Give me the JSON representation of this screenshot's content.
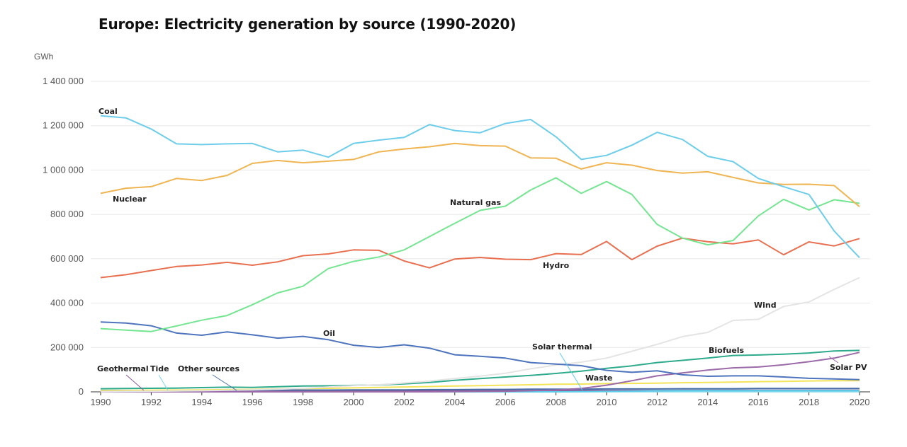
{
  "title": "Europe: Electricity generation by source (1990-2020)",
  "chart_data": {
    "type": "line",
    "title": "Europe: Electricity generation by source (1990-2020)",
    "unit": "GWh",
    "xlim": [
      1990,
      2020
    ],
    "ylim": [
      0,
      1400000
    ],
    "x_ticks": [
      1990,
      1992,
      1994,
      1996,
      1998,
      2000,
      2002,
      2004,
      2006,
      2008,
      2010,
      2012,
      2014,
      2016,
      2018,
      2020
    ],
    "y_ticks": [
      0,
      200000,
      400000,
      600000,
      800000,
      1000000,
      1200000,
      1400000
    ],
    "y_tick_labels": [
      "0",
      "200 000",
      "400 000",
      "600 000",
      "800 000",
      "1 000 000",
      "1 200 000",
      "1 400 000"
    ],
    "x": [
      1990,
      1991,
      1992,
      1993,
      1994,
      1995,
      1996,
      1997,
      1998,
      1999,
      2000,
      2001,
      2002,
      2003,
      2004,
      2005,
      2006,
      2007,
      2008,
      2009,
      2010,
      2011,
      2012,
      2013,
      2014,
      2015,
      2016,
      2017,
      2018,
      2019,
      2020
    ],
    "grid": "horizontal",
    "series": [
      {
        "name": "Coal",
        "color": "#6dcdea",
        "values": [
          1245000,
          1235000,
          1185000,
          1118000,
          1115000,
          1118000,
          1120000,
          1082000,
          1090000,
          1058000,
          1120000,
          1135000,
          1147000,
          1205000,
          1178000,
          1168000,
          1210000,
          1228000,
          1150000,
          1048000,
          1066000,
          1112000,
          1170000,
          1138000,
          1062000,
          1038000,
          962000,
          925000,
          890000,
          725000,
          605000
        ]
      },
      {
        "name": "Nuclear",
        "color": "#efb552",
        "values": [
          895000,
          918000,
          925000,
          962000,
          953000,
          976000,
          1030000,
          1043000,
          1033000,
          1040000,
          1048000,
          1082000,
          1095000,
          1105000,
          1120000,
          1110000,
          1108000,
          1055000,
          1053000,
          1005000,
          1033000,
          1022000,
          998000,
          986000,
          992000,
          967000,
          942000,
          935000,
          936000,
          930000,
          835000
        ]
      },
      {
        "name": "Natural gas",
        "color": "#74e591",
        "values": [
          285000,
          278000,
          272000,
          297000,
          323000,
          344000,
          393000,
          446000,
          476000,
          556000,
          588000,
          608000,
          640000,
          700000,
          760000,
          818000,
          837000,
          910000,
          965000,
          895000,
          948000,
          890000,
          755000,
          693000,
          663000,
          682000,
          793000,
          868000,
          820000,
          866000,
          850000
        ]
      },
      {
        "name": "Hydro",
        "color": "#e86f4f",
        "values": [
          515000,
          528000,
          547000,
          565000,
          572000,
          584000,
          571000,
          586000,
          614000,
          622000,
          640000,
          638000,
          590000,
          559000,
          599000,
          606000,
          598000,
          596000,
          623000,
          619000,
          678000,
          596000,
          657000,
          693000,
          677000,
          667000,
          685000,
          618000,
          676000,
          658000,
          691000
        ]
      },
      {
        "name": "Oil",
        "color": "#4e74bd",
        "values": [
          315000,
          310000,
          298000,
          265000,
          255000,
          270000,
          257000,
          242000,
          250000,
          235000,
          210000,
          200000,
          212000,
          197000,
          167000,
          160000,
          152000,
          132000,
          125000,
          118000,
          97000,
          88000,
          95000,
          77000,
          70000,
          72000,
          72000,
          67000,
          61000,
          58000,
          55000
        ]
      },
      {
        "name": "Wind",
        "color": "#e4e4e4",
        "values": [
          1000,
          2000,
          3000,
          4000,
          5000,
          7000,
          9000,
          12000,
          16000,
          22000,
          28000,
          32000,
          40000,
          48000,
          60000,
          71000,
          84000,
          104000,
          121000,
          134000,
          152000,
          183000,
          214000,
          249000,
          268000,
          322000,
          327000,
          385000,
          405000,
          462000,
          515000
        ]
      },
      {
        "name": "Biofuels",
        "color": "#2eab8c",
        "values": [
          14000,
          15000,
          16000,
          17000,
          19000,
          21000,
          20000,
          23000,
          26000,
          27000,
          29000,
          31000,
          36000,
          42000,
          52000,
          60000,
          67000,
          74000,
          83000,
          93000,
          106000,
          117000,
          132000,
          142000,
          152000,
          164000,
          166000,
          170000,
          175000,
          184000,
          187000
        ]
      },
      {
        "name": "Solar PV",
        "color": "#9b6aa9",
        "values": [
          0,
          0,
          0,
          0,
          0,
          0,
          0,
          0,
          0,
          0,
          0,
          0,
          0,
          0,
          1000,
          2000,
          3000,
          5000,
          8000,
          15000,
          30000,
          50000,
          72000,
          85000,
          98000,
          108000,
          112000,
          122000,
          136000,
          152000,
          178000
        ]
      },
      {
        "name": "Waste",
        "color": "#f3e45a",
        "values": [
          5000,
          6000,
          7000,
          8000,
          9000,
          10000,
          11000,
          13000,
          15000,
          16000,
          18000,
          20000,
          22000,
          24000,
          26000,
          28000,
          30000,
          32000,
          34000,
          35000,
          37000,
          38000,
          39000,
          41000,
          42000,
          44000,
          46000,
          47000,
          49000,
          50000,
          50000
        ]
      },
      {
        "name": "Other sources",
        "color": "#4a6fa8",
        "values": [
          6000,
          6000,
          6000,
          7000,
          7000,
          7000,
          8000,
          8000,
          8000,
          8000,
          9000,
          9000,
          9000,
          10000,
          10000,
          11000,
          11000,
          12000,
          12000,
          12000,
          13000,
          13000,
          13000,
          14000,
          14000,
          14000,
          15000,
          15000,
          15000,
          15000,
          15000
        ]
      },
      {
        "name": "Solar thermal",
        "color": "#5dcce9",
        "values": [
          0,
          0,
          0,
          0,
          0,
          0,
          0,
          0,
          0,
          0,
          0,
          0,
          0,
          0,
          0,
          0,
          0,
          0,
          0,
          1000,
          2000,
          3000,
          5000,
          6000,
          6000,
          6000,
          6000,
          6000,
          6000,
          6000,
          6000
        ]
      },
      {
        "name": "Geothermal",
        "color": "#8b5a96",
        "values": [
          4000,
          4000,
          4000,
          4000,
          4000,
          4000,
          4000,
          4000,
          5000,
          5000,
          5000,
          5000,
          5000,
          5000,
          5000,
          5000,
          6000,
          6000,
          6000,
          6000,
          6000,
          6000,
          6000,
          7000,
          7000,
          7000,
          7000,
          7000,
          7000,
          7000,
          7000
        ]
      },
      {
        "name": "Tide",
        "color": "#7fd6ea",
        "values": [
          500,
          500,
          500,
          500,
          500,
          500,
          500,
          500,
          500,
          500,
          500,
          500,
          500,
          500,
          500,
          500,
          500,
          500,
          500,
          500,
          500,
          500,
          500,
          500,
          500,
          500,
          500,
          500,
          500,
          500,
          500
        ]
      }
    ],
    "annotations": [
      {
        "series": "Coal",
        "label": "Coal"
      },
      {
        "series": "Nuclear",
        "label": "Nuclear"
      },
      {
        "series": "Natural gas",
        "label": "Natural gas"
      },
      {
        "series": "Hydro",
        "label": "Hydro"
      },
      {
        "series": "Wind",
        "label": "Wind"
      },
      {
        "series": "Oil",
        "label": "Oil"
      },
      {
        "series": "Solar thermal",
        "label": "Solar thermal"
      },
      {
        "series": "Biofuels",
        "label": "Biofuels"
      },
      {
        "series": "Solar PV",
        "label": "Solar PV"
      },
      {
        "series": "Geothermal",
        "label": "Geothermal"
      },
      {
        "series": "Tide",
        "label": "Tide"
      },
      {
        "series": "Other sources",
        "label": "Other sources"
      },
      {
        "series": "Waste",
        "label": "Waste"
      }
    ]
  }
}
